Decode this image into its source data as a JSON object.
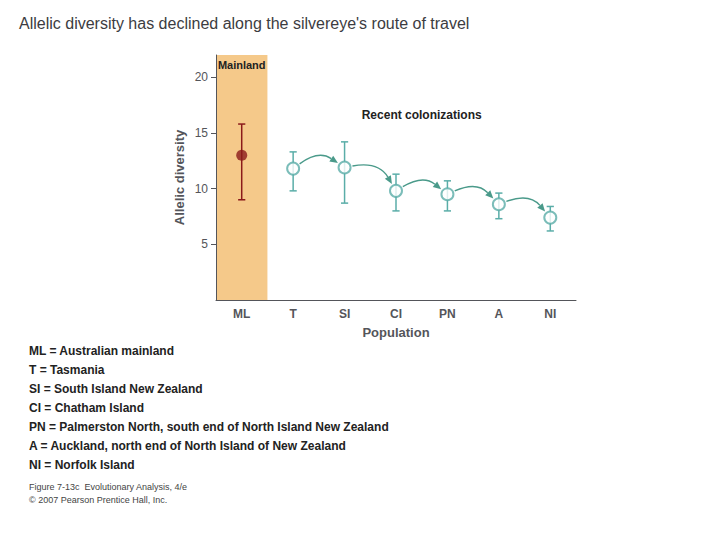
{
  "chart_data": {
    "type": "scatter",
    "title": "Allelic diversity has declined along the silvereye's route of travel",
    "xlabel": "Population",
    "ylabel": "Allelic diversity",
    "categories": [
      "ML",
      "T",
      "SI",
      "CI",
      "PN",
      "A",
      "NI"
    ],
    "values": [
      13.0,
      11.8,
      11.9,
      9.8,
      9.5,
      8.6,
      7.4
    ],
    "errors_upper": [
      2.8,
      1.5,
      2.3,
      1.5,
      1.2,
      1.0,
      1.0
    ],
    "errors_lower": [
      4.0,
      2.0,
      3.2,
      1.8,
      1.5,
      1.3,
      1.2
    ],
    "colors": [
      "#8b1a1a",
      "#5aada8",
      "#5aada8",
      "#5aada8",
      "#5aada8",
      "#5aada8",
      "#5aada8"
    ],
    "ylim": [
      0,
      22
    ],
    "yticks": [
      5,
      10,
      15,
      20
    ],
    "grid": false,
    "annotations": [
      {
        "text": "Mainland",
        "color": "#f5c98a"
      },
      {
        "text": "Recent colonizations",
        "color": "#4a9a8a"
      },
      "ML = Australian mainland",
      "T = Tasmania",
      "SI = South Island New Zealand",
      "CI = Chatham Island",
      "PN = Palmerston North, south end of North Island New Zealand",
      "A = Auckland, north end of North Island of New Zealand",
      "NI = Norfolk Island",
      "Figure 7-13c  Evolutionary Analysis, 4/e",
      "© 2007 Pearson Prentice Hall, Inc."
    ]
  }
}
